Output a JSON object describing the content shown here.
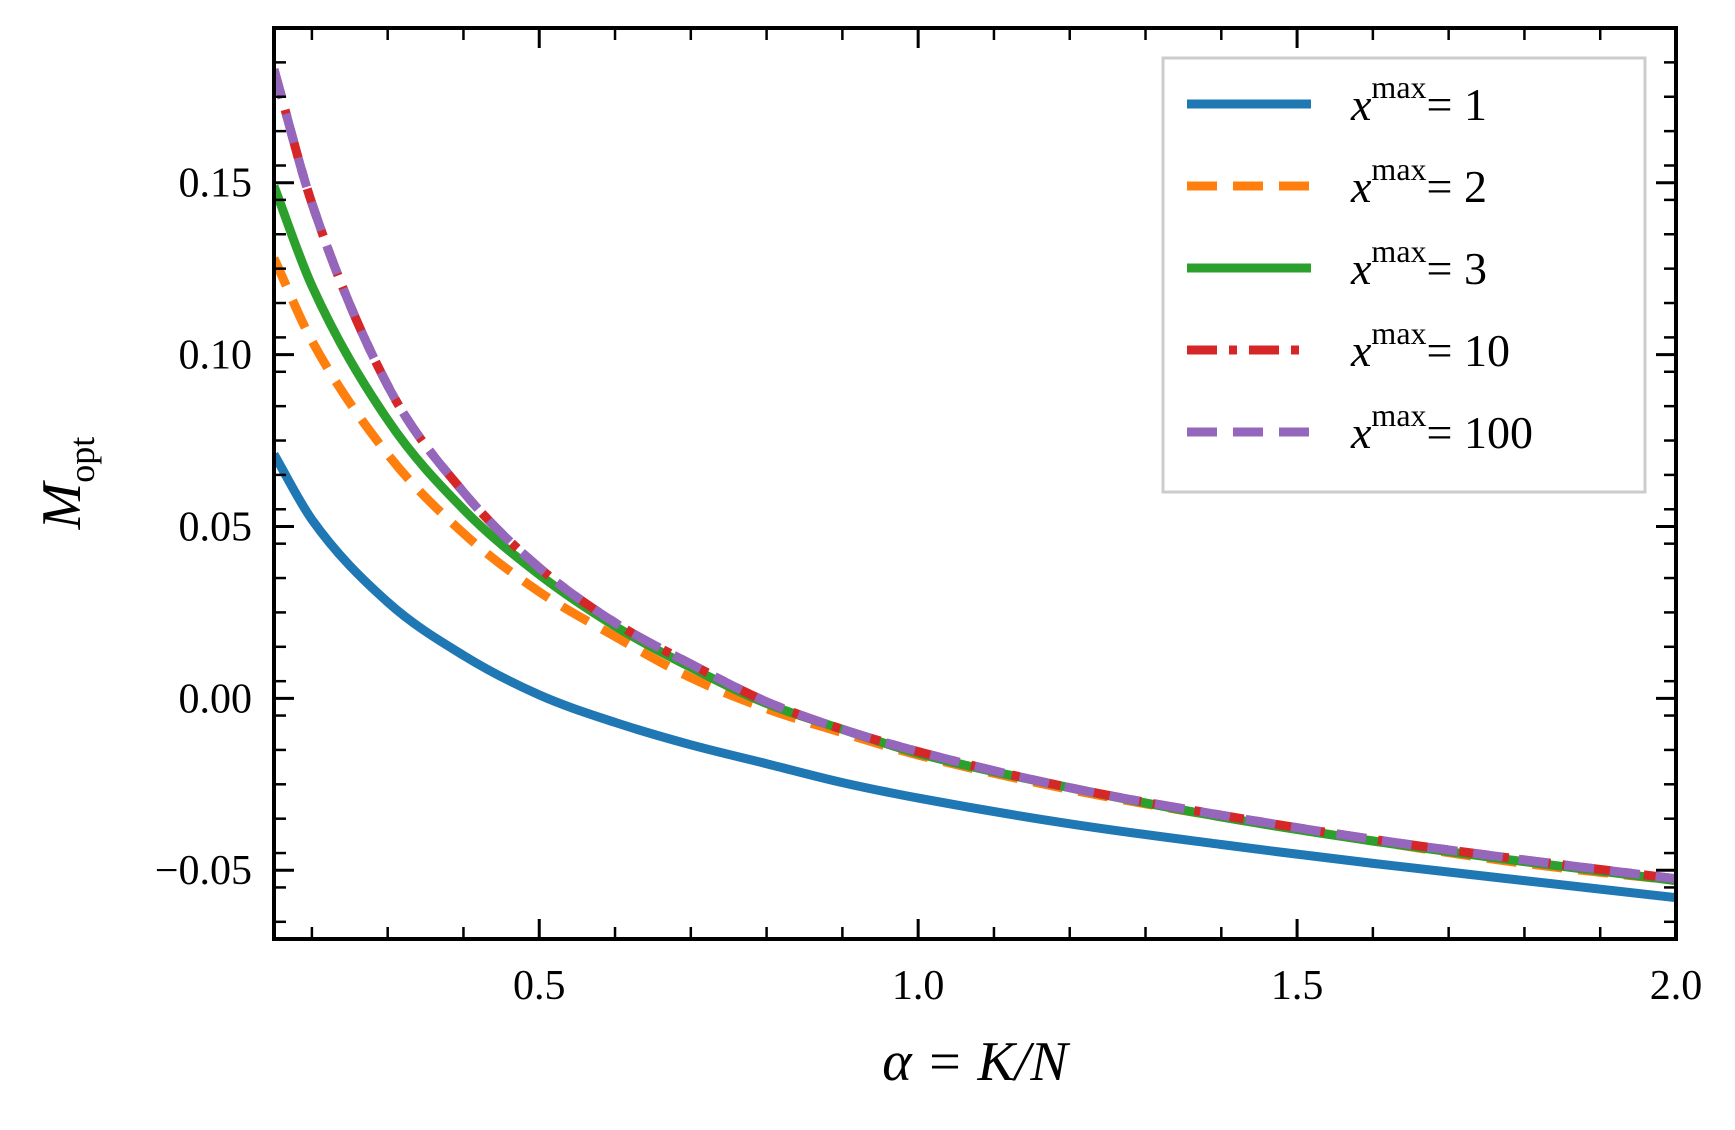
{
  "chart_data": {
    "type": "line",
    "xlabel": "α = K/N",
    "ylabel": "M_opt",
    "xlim": [
      0.15,
      2.0
    ],
    "ylim": [
      -0.07,
      0.195
    ],
    "x_ticks": [
      0.5,
      1.0,
      1.5,
      2.0
    ],
    "x_tick_labels": [
      "0.5",
      "1.0",
      "1.5",
      "2.0"
    ],
    "y_ticks": [
      -0.05,
      0.0,
      0.05,
      0.1,
      0.15
    ],
    "y_tick_labels": [
      "−0.05",
      "0.00",
      "0.05",
      "0.10",
      "0.15"
    ],
    "grid": false,
    "legend_position": "top-right",
    "x": [
      0.15,
      0.2,
      0.3,
      0.4,
      0.5,
      0.6,
      0.7,
      0.8,
      0.9,
      1.0,
      1.2,
      1.4,
      1.6,
      1.8,
      2.0
    ],
    "series": [
      {
        "name": "x^max = 1",
        "legend_base": "x",
        "legend_sup": "max",
        "legend_value": "= 1",
        "color": "#1f77b4",
        "style": "solid",
        "values": [
          0.071,
          0.052,
          0.028,
          0.0125,
          0.001,
          -0.007,
          -0.0135,
          -0.019,
          -0.0245,
          -0.029,
          -0.0365,
          -0.0425,
          -0.048,
          -0.053,
          -0.058
        ]
      },
      {
        "name": "x^max = 2",
        "legend_base": "x",
        "legend_sup": "max",
        "legend_value": "= 2",
        "color": "#ff7f0e",
        "style": "dashed",
        "values": [
          0.128,
          0.104,
          0.071,
          0.048,
          0.031,
          0.018,
          0.006,
          -0.003,
          -0.01,
          -0.0165,
          -0.0265,
          -0.0345,
          -0.0415,
          -0.048,
          -0.053
        ]
      },
      {
        "name": "x^max = 3",
        "legend_base": "x",
        "legend_sup": "max",
        "legend_value": "= 3",
        "color": "#2ca02c",
        "style": "solid",
        "values": [
          0.149,
          0.12,
          0.081,
          0.055,
          0.036,
          0.021,
          0.009,
          -0.0015,
          -0.009,
          -0.016,
          -0.026,
          -0.0345,
          -0.0415,
          -0.0475,
          -0.053
        ]
      },
      {
        "name": "x^max = 10",
        "legend_base": "x",
        "legend_sup": "max",
        "legend_value": "= 10",
        "color": "#d62728",
        "style": "dashdot",
        "values": [
          0.183,
          0.144,
          0.091,
          0.06,
          0.038,
          0.022,
          0.01,
          -0.001,
          -0.009,
          -0.0155,
          -0.026,
          -0.034,
          -0.041,
          -0.047,
          -0.0525
        ]
      },
      {
        "name": "x^max = 100",
        "legend_base": "x",
        "legend_sup": "max",
        "legend_value": "= 100",
        "color": "#9467bd",
        "style": "dashed",
        "values": [
          0.183,
          0.144,
          0.091,
          0.06,
          0.038,
          0.022,
          0.01,
          -0.001,
          -0.009,
          -0.0155,
          -0.026,
          -0.034,
          -0.041,
          -0.047,
          -0.0525
        ]
      }
    ]
  }
}
